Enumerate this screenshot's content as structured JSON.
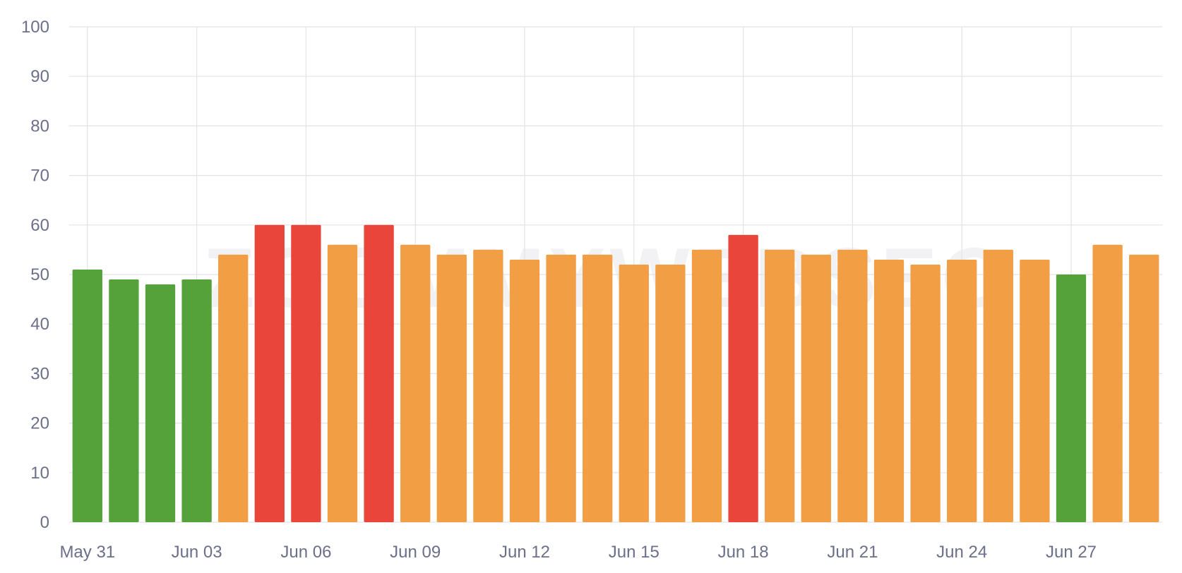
{
  "chart_data": {
    "type": "bar",
    "watermark": "ZOOMMYWEBSEO",
    "ylim": [
      0,
      100
    ],
    "y_ticks": [
      0,
      10,
      20,
      30,
      40,
      50,
      60,
      70,
      80,
      90,
      100
    ],
    "grid": true,
    "x_tick_labels": [
      "May 31",
      "Jun 03",
      "Jun 06",
      "Jun 09",
      "Jun 12",
      "Jun 15",
      "Jun 18",
      "Jun 21",
      "Jun 24",
      "Jun 27"
    ],
    "categories": [
      "May 31",
      "Jun 01",
      "Jun 02",
      "Jun 03",
      "Jun 04",
      "Jun 05",
      "Jun 06",
      "Jun 07",
      "Jun 08",
      "Jun 09",
      "Jun 10",
      "Jun 11",
      "Jun 12",
      "Jun 13",
      "Jun 14",
      "Jun 15",
      "Jun 16",
      "Jun 17",
      "Jun 18",
      "Jun 19",
      "Jun 20",
      "Jun 21",
      "Jun 22",
      "Jun 23",
      "Jun 24",
      "Jun 25",
      "Jun 26",
      "Jun 27",
      "Jun 28",
      "Jun 29"
    ],
    "values": [
      51,
      49,
      48,
      49,
      54,
      60,
      60,
      56,
      60,
      56,
      54,
      55,
      53,
      54,
      54,
      52,
      52,
      55,
      58,
      55,
      54,
      55,
      53,
      52,
      53,
      55,
      53,
      50,
      56,
      54
    ],
    "colors": {
      "green": "#55a23b",
      "orange": "#f29e45",
      "red": "#e9453a"
    },
    "bar_colors": [
      "green",
      "green",
      "green",
      "green",
      "orange",
      "red",
      "red",
      "orange",
      "red",
      "orange",
      "orange",
      "orange",
      "orange",
      "orange",
      "orange",
      "orange",
      "orange",
      "orange",
      "red",
      "orange",
      "orange",
      "orange",
      "orange",
      "orange",
      "orange",
      "orange",
      "orange",
      "green",
      "orange",
      "orange"
    ]
  }
}
